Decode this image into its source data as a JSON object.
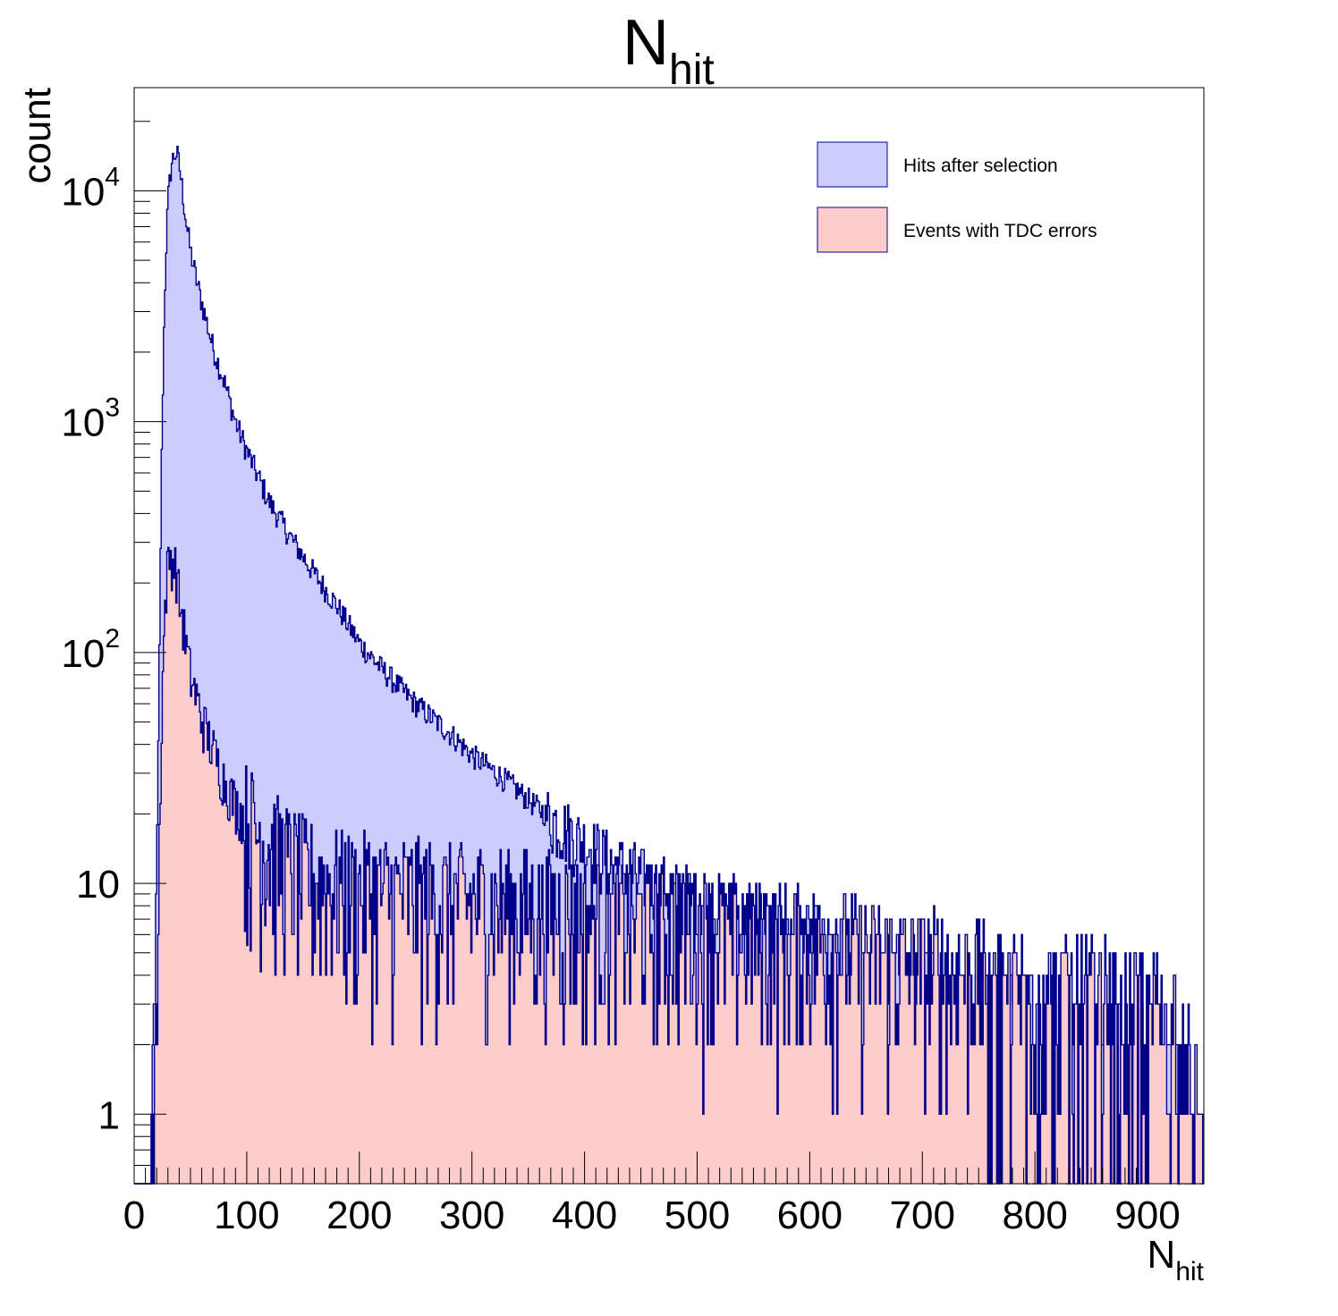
{
  "chart_data": {
    "type": "area",
    "title": "N",
    "title_subscript": "hit",
    "xlabel": "N",
    "xlabel_subscript": "hit",
    "ylabel": "count",
    "xlim": [
      0,
      950
    ],
    "ylim": [
      0.5,
      28000
    ],
    "y_scale": "log",
    "bin_width": 1,
    "grid": false,
    "legend_position": "top-right",
    "x_ticks": [
      "0",
      "100",
      "200",
      "300",
      "400",
      "500",
      "600",
      "700",
      "800",
      "900"
    ],
    "y_ticks": [
      {
        "value": 1,
        "base": "1",
        "exp": ""
      },
      {
        "value": 10,
        "base": "10",
        "exp": ""
      },
      {
        "value": 100,
        "base": "10",
        "exp": "2"
      },
      {
        "value": 1000,
        "base": "10",
        "exp": "3"
      },
      {
        "value": 10000,
        "base": "10",
        "exp": "4"
      }
    ],
    "series": [
      {
        "name": "Hits after selection",
        "fill": "#ccccff",
        "line": "#00008b",
        "profile_x": [
          12,
          15,
          18,
          20,
          22,
          24,
          26,
          28,
          30,
          33,
          36,
          38,
          40,
          43,
          46,
          50,
          55,
          60,
          70,
          80,
          90,
          100,
          120,
          140,
          160,
          180,
          200,
          220,
          250,
          280,
          300,
          330,
          360,
          400,
          430,
          460,
          500,
          550,
          600,
          650,
          700,
          750,
          800,
          850,
          900,
          930,
          945,
          950
        ],
        "profile_y": [
          0.5,
          1,
          3,
          10,
          60,
          500,
          2000,
          5000,
          9000,
          13000,
          14500,
          14500,
          13000,
          10000,
          7500,
          5500,
          4200,
          3300,
          2100,
          1500,
          1000,
          750,
          450,
          310,
          220,
          160,
          110,
          85,
          60,
          45,
          36,
          28,
          21,
          15,
          12,
          10,
          8.5,
          7,
          6,
          5,
          4.2,
          3.5,
          3,
          2.5,
          2.2,
          1.8,
          1,
          0.8
        ],
        "noise": 0.25
      },
      {
        "name": "Events with TDC errors",
        "fill": "#ffcccc",
        "line": "#00008b",
        "profile_x": [
          12,
          17,
          20,
          22,
          24,
          26,
          28,
          30,
          32,
          35,
          38,
          40,
          43,
          46,
          50,
          55,
          60,
          70,
          80,
          90,
          100,
          120,
          140,
          160,
          200,
          250,
          300,
          400,
          500,
          600,
          700,
          800,
          900,
          930,
          945,
          950
        ],
        "profile_y": [
          0.5,
          1,
          2,
          10,
          40,
          100,
          180,
          240,
          260,
          250,
          220,
          170,
          140,
          110,
          80,
          65,
          52,
          38,
          28,
          22,
          19,
          15,
          12,
          10.5,
          9.5,
          9,
          8.5,
          7.5,
          6.5,
          5.5,
          4.5,
          3.6,
          3,
          2.5,
          1.2,
          0.8
        ],
        "noise": 0.55
      }
    ]
  }
}
